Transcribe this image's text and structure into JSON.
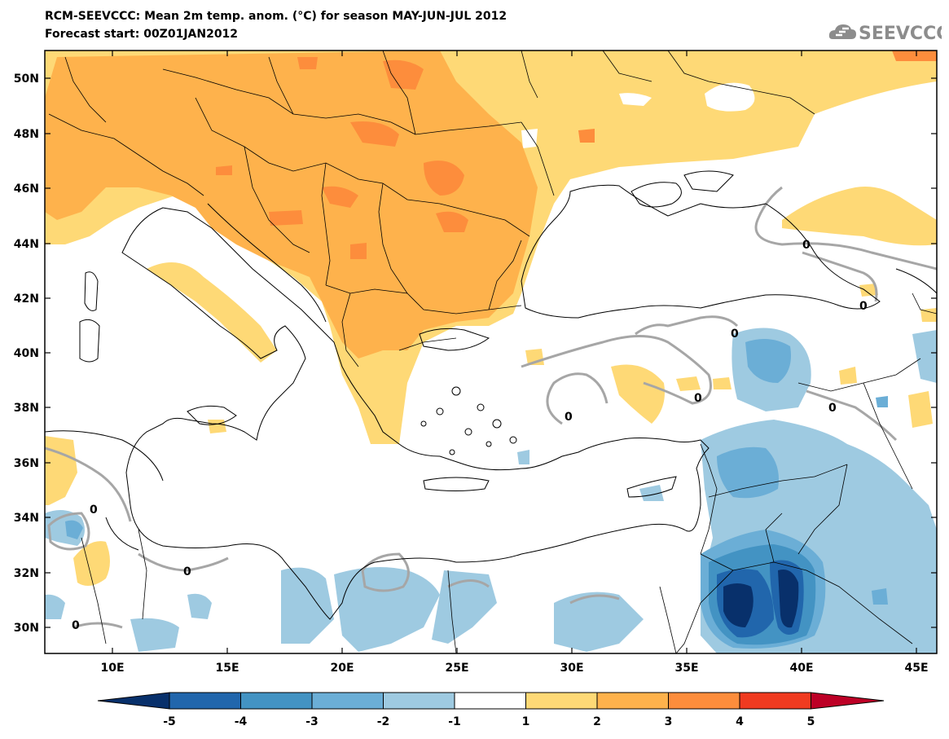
{
  "header": {
    "title_line1": "RCM-SEEVCCC: Mean 2m temp. anom. (°C) for season MAY-JUN-JUL 2012",
    "title_line2": "Forecast start: 00Z01JAN2012",
    "logo_text": "SEEVCCC",
    "logo_icon": "cloud-logo-icon"
  },
  "map": {
    "lat_labels": [
      "50N",
      "48N",
      "46N",
      "44N",
      "42N",
      "40N",
      "38N",
      "36N",
      "34N",
      "32N",
      "30N"
    ],
    "lon_labels": [
      "10E",
      "15E",
      "20E",
      "25E",
      "30E",
      "35E",
      "40E",
      "45E"
    ],
    "contour_label": "0"
  },
  "colorbar": {
    "labels": [
      "-5",
      "-4",
      "-3",
      "-2",
      "-1",
      "1",
      "2",
      "3",
      "4",
      "5"
    ],
    "colors": [
      "#08306b",
      "#2166ac",
      "#4393c3",
      "#6baed6",
      "#9ecae1",
      "#ffffff",
      "#fed976",
      "#feb24c",
      "#fd8d3c",
      "#f03b20",
      "#bd0026"
    ]
  }
}
